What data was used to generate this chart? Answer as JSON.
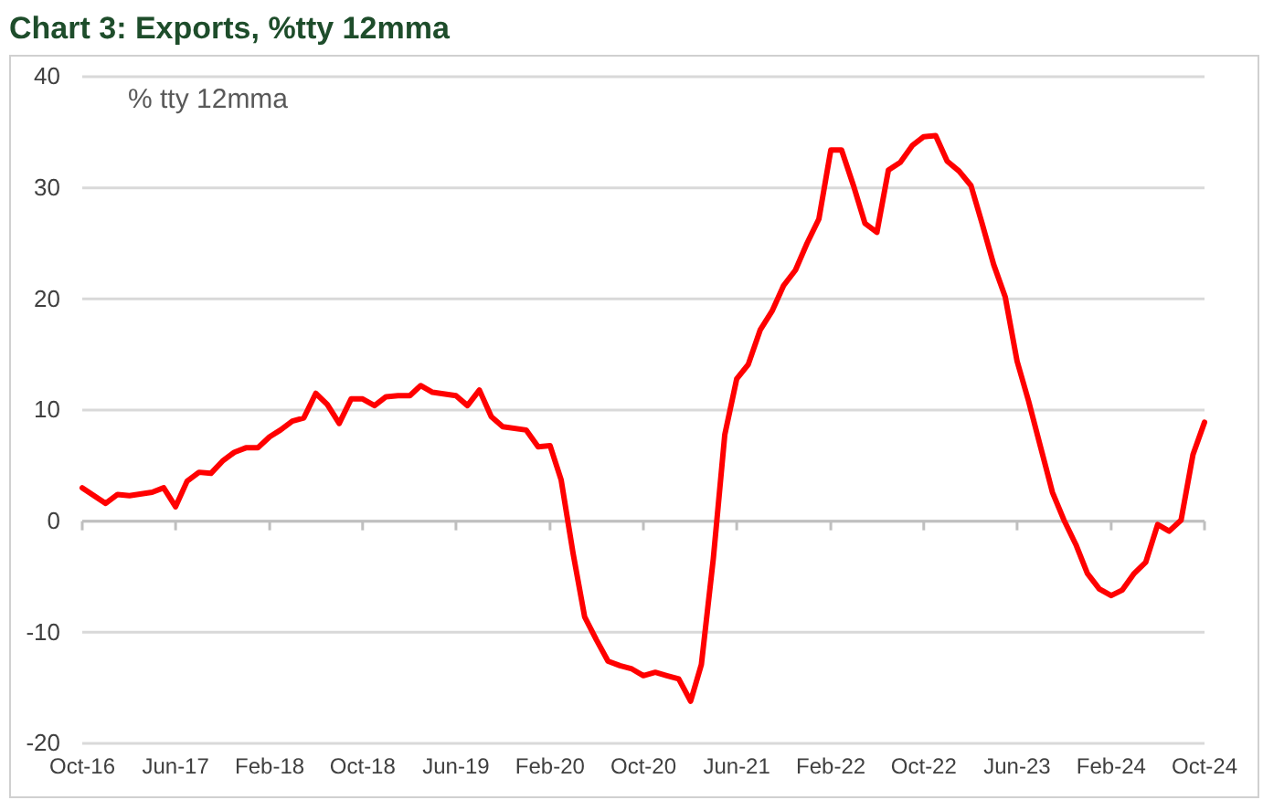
{
  "chart_data": {
    "type": "line",
    "title": "Chart 3: Exports, %tty 12mma",
    "annotations": [
      "% tty 12mma"
    ],
    "x": [
      "2016-10",
      "2016-12",
      "2017-01",
      "2017-02",
      "2017-04",
      "2017-05",
      "2017-06",
      "2017-07",
      "2017-08",
      "2017-09",
      "2017-10",
      "2017-11",
      "2017-12",
      "2018-01",
      "2018-02",
      "2018-03",
      "2018-04",
      "2018-05",
      "2018-06",
      "2018-07",
      "2018-08",
      "2018-09",
      "2018-10",
      "2018-11",
      "2018-12",
      "2019-01",
      "2019-02",
      "2019-03",
      "2019-04",
      "2019-06",
      "2019-07",
      "2019-08",
      "2019-09",
      "2019-10",
      "2019-12",
      "2020-01",
      "2020-02",
      "2020-03",
      "2020-04",
      "2020-05",
      "2020-06",
      "2020-07",
      "2020-08",
      "2020-09",
      "2020-10",
      "2020-11",
      "2020-12",
      "2021-01",
      "2021-02",
      "2021-03",
      "2021-04",
      "2021-05",
      "2021-06",
      "2021-07",
      "2021-08",
      "2021-09",
      "2021-10",
      "2021-11",
      "2021-12",
      "2022-01",
      "2022-02",
      "2022-03",
      "2022-04",
      "2022-05",
      "2022-06",
      "2022-07",
      "2022-08",
      "2022-09",
      "2022-10",
      "2022-11",
      "2022-12",
      "2023-01",
      "2023-02",
      "2023-03",
      "2023-04",
      "2023-05",
      "2023-06",
      "2023-07",
      "2023-08",
      "2023-09",
      "2023-10",
      "2023-11",
      "2023-12",
      "2024-01",
      "2024-02",
      "2024-03",
      "2024-04",
      "2024-05",
      "2024-06",
      "2024-07",
      "2024-08",
      "2024-09",
      "2024-10"
    ],
    "series": [
      {
        "color": "#ff0000",
        "values": [
          3.0,
          1.6,
          2.4,
          2.3,
          2.6,
          3.0,
          1.3,
          3.6,
          4.4,
          4.3,
          5.4,
          6.2,
          6.6,
          6.6,
          7.6,
          8.2,
          9.0,
          9.3,
          11.5,
          10.5,
          8.8,
          11.0,
          11.0,
          10.4,
          11.2,
          11.3,
          11.3,
          12.2,
          11.6,
          11.3,
          10.4,
          11.8,
          9.4,
          8.5,
          8.2,
          6.7,
          6.8,
          3.7,
          -2.9,
          -8.6,
          -10.7,
          -12.6,
          -13.0,
          -13.3,
          -13.9,
          -13.6,
          -13.9,
          -14.2,
          -16.2,
          -12.9,
          -3.4,
          7.8,
          12.8,
          14.1,
          17.2,
          18.9,
          21.2,
          22.6,
          25.0,
          27.2,
          33.4,
          33.4,
          30.2,
          26.8,
          26.0,
          31.6,
          32.3,
          33.8,
          34.6,
          34.7,
          32.4,
          31.5,
          30.2,
          26.9,
          23.1,
          20.2,
          14.4,
          10.8,
          6.7,
          2.6,
          0.1,
          -2.1,
          -4.7,
          -6.1,
          -6.7,
          -6.2,
          -4.7,
          -3.7,
          -0.3,
          -0.9,
          0.1,
          6.0,
          8.9
        ]
      }
    ],
    "xlim": [
      "2016-10",
      "2024-10"
    ],
    "xticks": [
      {
        "value": "2016-10",
        "label": "Oct-16"
      },
      {
        "value": "2017-06",
        "label": "Jun-17"
      },
      {
        "value": "2018-02",
        "label": "Feb-18"
      },
      {
        "value": "2018-10",
        "label": "Oct-18"
      },
      {
        "value": "2019-06",
        "label": "Jun-19"
      },
      {
        "value": "2020-02",
        "label": "Feb-20"
      },
      {
        "value": "2020-10",
        "label": "Oct-20"
      },
      {
        "value": "2021-06",
        "label": "Jun-21"
      },
      {
        "value": "2022-02",
        "label": "Feb-22"
      },
      {
        "value": "2022-10",
        "label": "Oct-22"
      },
      {
        "value": "2023-06",
        "label": "Jun-23"
      },
      {
        "value": "2024-02",
        "label": "Feb-24"
      },
      {
        "value": "2024-10",
        "label": "Oct-24"
      }
    ],
    "ylim": [
      -20,
      40
    ],
    "yticks": [
      -20,
      -10,
      0,
      10,
      20,
      30,
      40
    ],
    "grid": "y"
  }
}
